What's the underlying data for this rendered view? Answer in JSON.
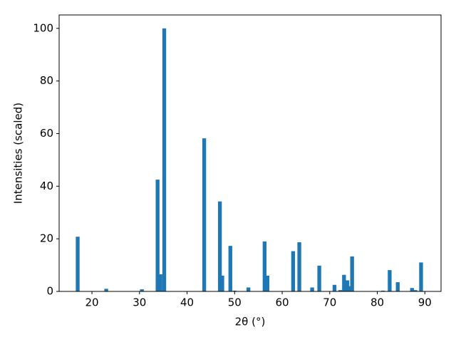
{
  "chart_data": {
    "type": "bar",
    "x": [
      17.0,
      23.0,
      30.5,
      33.8,
      34.4,
      35.2,
      43.6,
      46.9,
      47.4,
      49.1,
      50.0,
      52.9,
      56.3,
      56.9,
      62.3,
      63.6,
      66.3,
      67.8,
      71.0,
      72.2,
      73.0,
      73.7,
      74.2,
      74.7,
      81.2,
      82.6,
      84.3,
      87.3,
      88.0,
      89.2
    ],
    "values": [
      20.8,
      1.0,
      0.8,
      42.5,
      6.5,
      100,
      58.2,
      34.2,
      6.0,
      17.3,
      0.3,
      1.5,
      19.0,
      6.0,
      15.3,
      18.7,
      1.5,
      9.8,
      2.5,
      0.5,
      6.3,
      4.2,
      2.0,
      13.3,
      0.3,
      8.1,
      3.5,
      1.3,
      0.5,
      11.0
    ],
    "color": "#1f77b4",
    "xlabel": "2θ (°)",
    "ylabel": "Intensities (scaled)",
    "xlim": [
      13.1,
      93.4
    ],
    "xticks": [
      20,
      30,
      40,
      50,
      60,
      70,
      80,
      90
    ],
    "ylim": [
      0,
      105.1
    ],
    "yticks": [
      0,
      20,
      40,
      60,
      80,
      100
    ]
  }
}
